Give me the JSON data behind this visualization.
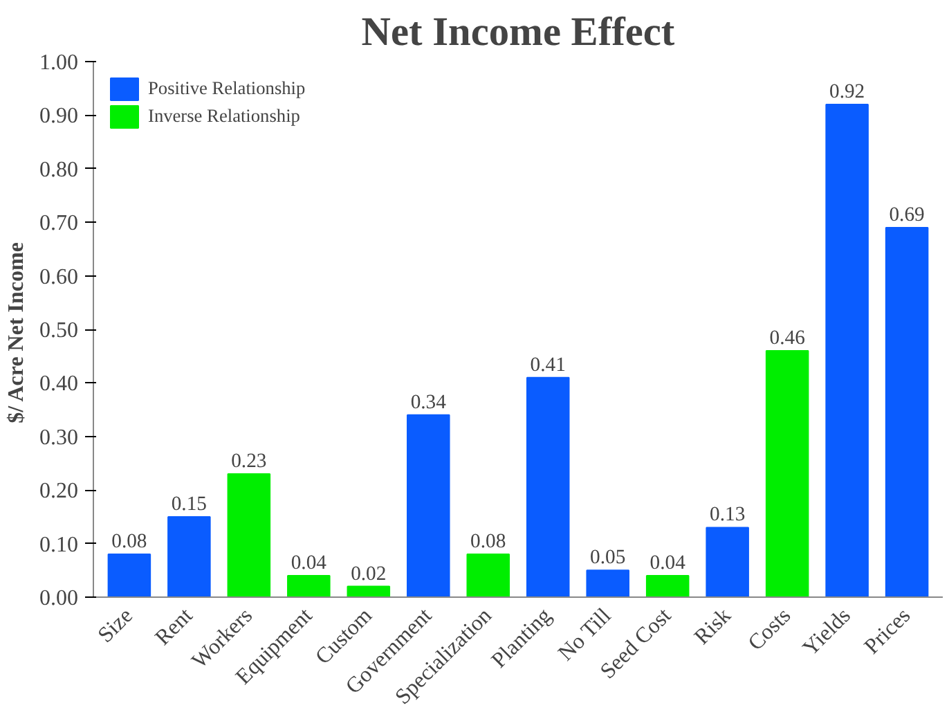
{
  "chart_data": {
    "type": "bar",
    "title": "Net Income Effect",
    "ylabel": "$/ Acre  Net Income",
    "categories": [
      "Size",
      "Rent",
      "Workers",
      "Equipment",
      "Custom",
      "Government",
      "Specialization",
      "Planting",
      "No Till",
      "Seed Cost",
      "Risk",
      "Costs",
      "Yields",
      "Prices"
    ],
    "series": [
      {
        "name": "Positive Relationship",
        "color": "#0a5cff",
        "values": [
          0.08,
          0.15,
          null,
          null,
          null,
          0.34,
          null,
          0.41,
          0.05,
          null,
          0.13,
          null,
          0.92,
          0.69
        ]
      },
      {
        "name": "Inverse Relationship",
        "color": "#00ee00",
        "values": [
          null,
          null,
          0.23,
          0.04,
          0.02,
          null,
          0.08,
          null,
          null,
          0.04,
          null,
          0.46,
          null,
          null
        ]
      }
    ],
    "ylim": [
      0,
      1
    ],
    "yticks": [
      {
        "value": 0,
        "label": "0.00"
      },
      {
        "value": 0.1,
        "label": "0.10"
      },
      {
        "value": 0.2,
        "label": "0.20"
      },
      {
        "value": 0.3,
        "label": "0.30"
      },
      {
        "value": 0.4,
        "label": "0.40"
      },
      {
        "value": 0.5,
        "label": "0.50"
      },
      {
        "value": 0.6,
        "label": "0.60"
      },
      {
        "value": 0.7,
        "label": "0.70"
      },
      {
        "value": 0.8,
        "label": "0.80"
      },
      {
        "value": 0.9,
        "label": "0.90"
      },
      {
        "value": 1,
        "label": "1.00"
      }
    ],
    "data_labels": true,
    "grid": false,
    "legend": "top left"
  }
}
